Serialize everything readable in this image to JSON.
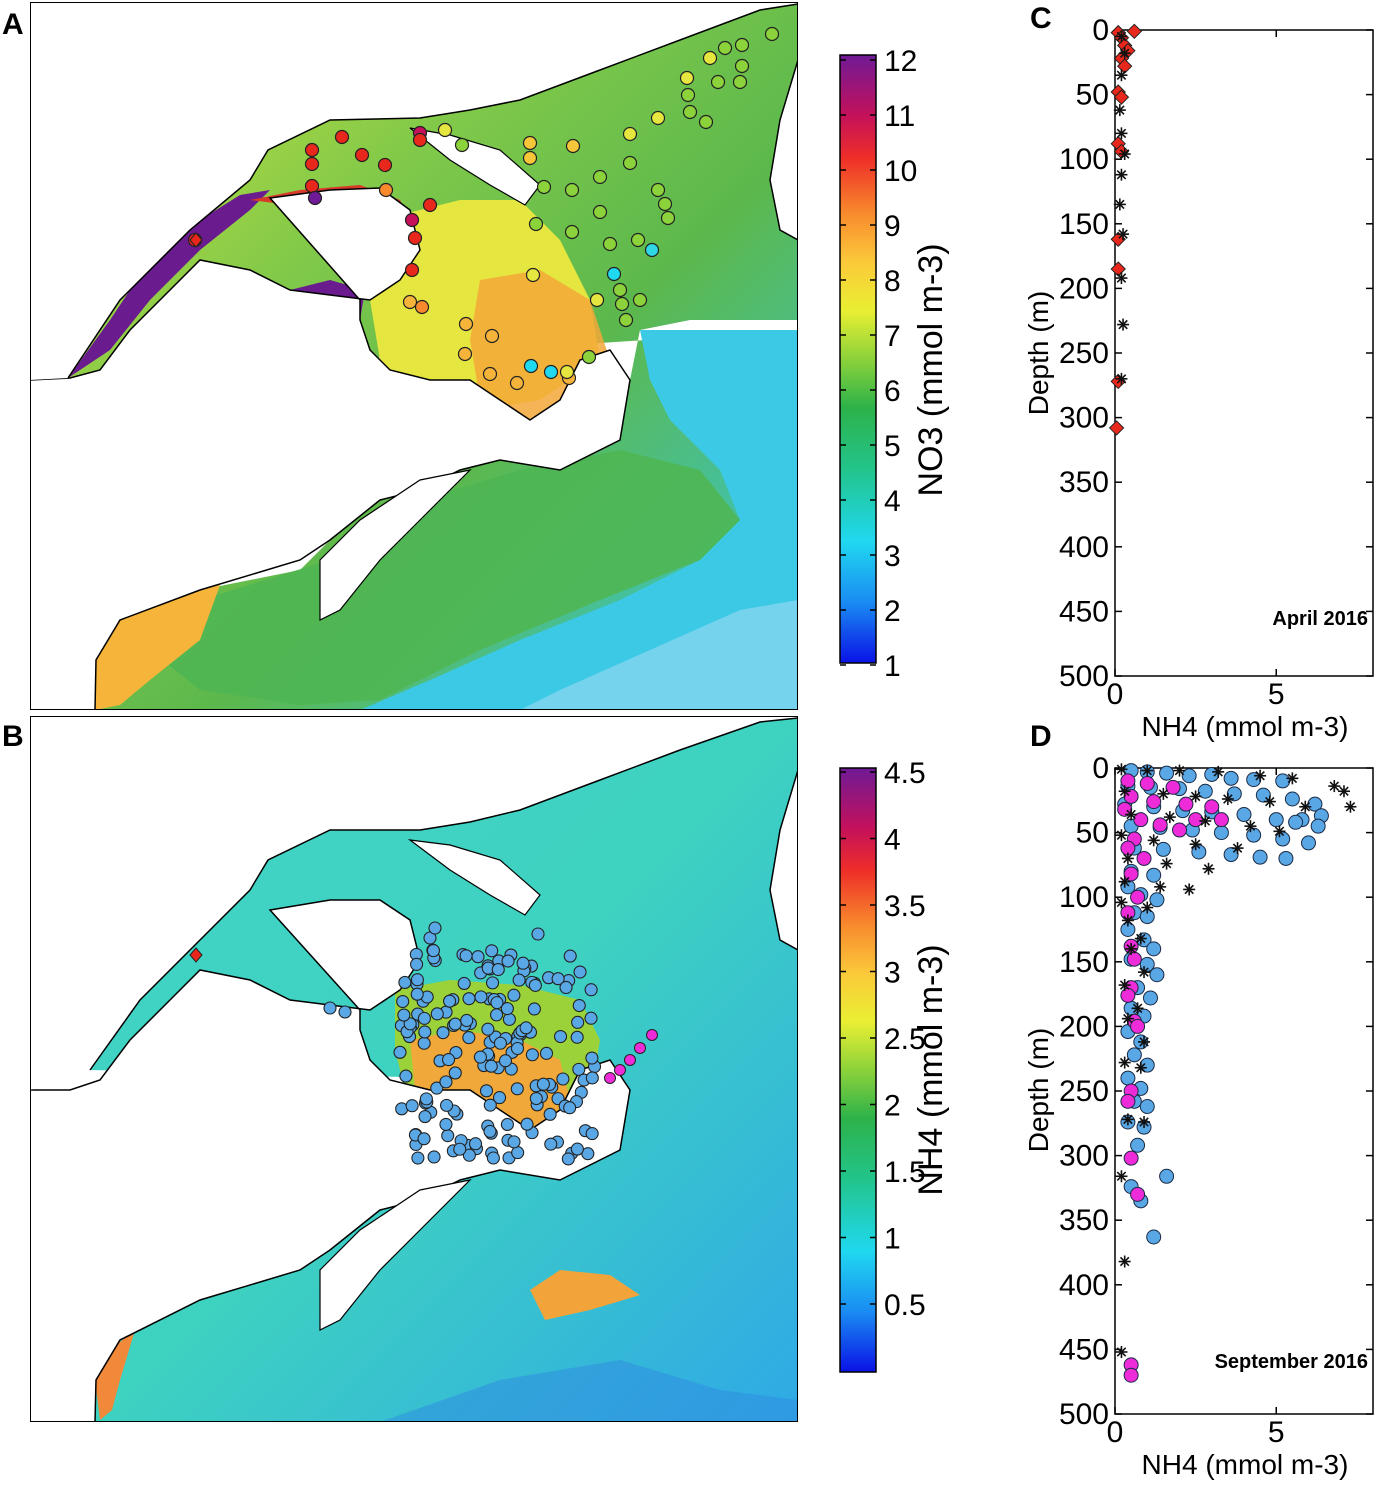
{
  "panels": {
    "a": {
      "label": "A",
      "colorbar_label": "NO3 (mmol m-3)",
      "colorbar_ticks": [
        "12",
        "11",
        "10",
        "9",
        "8",
        "7",
        "6",
        "5",
        "4",
        "3",
        "2",
        "1"
      ]
    },
    "b": {
      "label": "B",
      "colorbar_label": "NH4 (mmol m-3)",
      "colorbar_ticks": [
        "4.5",
        "4",
        "3.5",
        "3",
        "2.5",
        "2",
        "1.5",
        "1",
        "0.5"
      ]
    },
    "c": {
      "label": "C",
      "annotation": "April 2016"
    },
    "d": {
      "label": "D",
      "annotation": "September 2016"
    }
  },
  "colors": {
    "land": "#ffffff",
    "coast": "#000000",
    "marker_red": "#e8281c",
    "marker_blue": "#5aa7e6",
    "marker_magenta": "#ee2bd8",
    "marker_black": "#111111"
  },
  "chart_data": [
    {
      "type": "scatter",
      "panel": "C",
      "xlabel": "NH4 (mmol m-3)",
      "ylabel": "Depth (m)",
      "xlim": [
        0,
        8
      ],
      "ylim": [
        0,
        500
      ],
      "y_reversed": true,
      "x_ticks": [
        "0",
        "5"
      ],
      "y_ticks": [
        "0",
        "50",
        "100",
        "150",
        "200",
        "250",
        "300",
        "350",
        "400",
        "450",
        "500"
      ],
      "annotation": "April 2016",
      "series": [
        {
          "marker": "diamond",
          "color": "#e8281c",
          "points": [
            [
              0.1,
              2
            ],
            [
              0.6,
              1
            ],
            [
              0.2,
              6
            ],
            [
              0.3,
              12
            ],
            [
              0.4,
              16
            ],
            [
              0.2,
              22
            ],
            [
              0.3,
              28
            ],
            [
              0.1,
              48
            ],
            [
              0.2,
              52
            ],
            [
              0.1,
              88
            ],
            [
              0.2,
              94
            ],
            [
              0.1,
              162
            ],
            [
              0.1,
              185
            ],
            [
              0.1,
              272
            ],
            [
              0.05,
              308
            ]
          ]
        },
        {
          "marker": "asterisk",
          "color": "#111111",
          "points": [
            [
              0.2,
              5
            ],
            [
              0.3,
              18
            ],
            [
              0.2,
              35
            ],
            [
              0.15,
              62
            ],
            [
              0.2,
              80
            ],
            [
              0.3,
              96
            ],
            [
              0.2,
              112
            ],
            [
              0.15,
              135
            ],
            [
              0.25,
              158
            ],
            [
              0.2,
              192
            ],
            [
              0.25,
              228
            ],
            [
              0.2,
              270
            ]
          ]
        }
      ]
    },
    {
      "type": "scatter",
      "panel": "D",
      "xlabel": "NH4 (mmol m-3)",
      "ylabel": "Depth (m)",
      "xlim": [
        0,
        8
      ],
      "ylim": [
        0,
        500
      ],
      "y_reversed": true,
      "x_ticks": [
        "0",
        "5"
      ],
      "y_ticks": [
        "0",
        "50",
        "100",
        "150",
        "200",
        "250",
        "300",
        "350",
        "400",
        "450",
        "500"
      ],
      "annotation": "September 2016",
      "series": [
        {
          "marker": "circle",
          "color": "#5aa7e6",
          "points": [
            [
              0.5,
              2
            ],
            [
              1,
              3
            ],
            [
              1.6,
              4
            ],
            [
              2.3,
              6
            ],
            [
              3,
              5
            ],
            [
              3.6,
              8
            ],
            [
              4.3,
              9
            ],
            [
              5.2,
              10
            ],
            [
              0.4,
              14
            ],
            [
              1.1,
              15
            ],
            [
              2,
              16
            ],
            [
              2.8,
              18
            ],
            [
              3.7,
              20
            ],
            [
              4.6,
              21
            ],
            [
              5.5,
              24
            ],
            [
              6.2,
              28
            ],
            [
              5.8,
              40
            ],
            [
              6.4,
              37
            ],
            [
              0.3,
              28
            ],
            [
              1.2,
              30
            ],
            [
              2.1,
              33
            ],
            [
              3,
              34
            ],
            [
              4,
              36
            ],
            [
              5,
              40
            ],
            [
              5.6,
              42
            ],
            [
              6.3,
              45
            ],
            [
              0.5,
              45
            ],
            [
              1.4,
              46
            ],
            [
              2.4,
              48
            ],
            [
              3.3,
              50
            ],
            [
              4.3,
              52
            ],
            [
              5.2,
              55
            ],
            [
              6.0,
              58
            ],
            [
              0.6,
              62
            ],
            [
              1.5,
              63
            ],
            [
              2.6,
              65
            ],
            [
              3.6,
              67
            ],
            [
              4.5,
              69
            ],
            [
              5.3,
              70
            ],
            [
              0.5,
              80
            ],
            [
              1.2,
              83
            ],
            [
              0.4,
              92
            ],
            [
              0.8,
              98
            ],
            [
              1.3,
              102
            ],
            [
              0.6,
              112
            ],
            [
              1.0,
              115
            ],
            [
              0.4,
              125
            ],
            [
              0.9,
              133
            ],
            [
              1.2,
              140
            ],
            [
              0.5,
              148
            ],
            [
              1.0,
              152
            ],
            [
              1.3,
              160
            ],
            [
              0.7,
              170
            ],
            [
              1.1,
              178
            ],
            [
              0.5,
              186
            ],
            [
              0.9,
              192
            ],
            [
              0.4,
              204
            ],
            [
              0.8,
              212
            ],
            [
              0.6,
              222
            ],
            [
              1.0,
              230
            ],
            [
              0.4,
              240
            ],
            [
              0.8,
              248
            ],
            [
              0.6,
              258
            ],
            [
              1.0,
              262
            ],
            [
              0.4,
              274
            ],
            [
              0.9,
              278
            ],
            [
              0.7,
              292
            ],
            [
              1.6,
              316
            ],
            [
              0.5,
              324
            ],
            [
              0.8,
              335
            ],
            [
              1.2,
              363
            ]
          ]
        },
        {
          "marker": "circle",
          "color": "#ee2bd8",
          "points": [
            [
              0.4,
              10
            ],
            [
              1.0,
              12
            ],
            [
              1.8,
              15
            ],
            [
              0.5,
              22
            ],
            [
              1.2,
              26
            ],
            [
              2.2,
              28
            ],
            [
              3.0,
              30
            ],
            [
              0.3,
              32
            ],
            [
              0.8,
              40
            ],
            [
              2.5,
              40
            ],
            [
              3.3,
              40
            ],
            [
              1.4,
              44
            ],
            [
              2.0,
              48
            ],
            [
              0.6,
              55
            ],
            [
              0.4,
              62
            ],
            [
              0.9,
              70
            ],
            [
              0.5,
              82
            ],
            [
              0.7,
              100
            ],
            [
              0.4,
              112
            ],
            [
              0.5,
              138
            ],
            [
              0.6,
              148
            ],
            [
              0.5,
              170
            ],
            [
              0.4,
              176
            ],
            [
              0.6,
              196
            ],
            [
              0.7,
              200
            ],
            [
              0.5,
              250
            ],
            [
              0.4,
              258
            ],
            [
              0.5,
              302
            ],
            [
              0.7,
              330
            ],
            [
              0.5,
              462
            ],
            [
              0.5,
              470
            ]
          ]
        },
        {
          "marker": "asterisk",
          "color": "#111111",
          "points": [
            [
              0.2,
              1
            ],
            [
              1,
              2
            ],
            [
              2,
              2
            ],
            [
              3.2,
              3
            ],
            [
              4.5,
              6
            ],
            [
              5.5,
              8
            ],
            [
              6.8,
              14
            ],
            [
              7.1,
              18
            ],
            [
              0.3,
              18
            ],
            [
              1.5,
              20
            ],
            [
              2.5,
              22
            ],
            [
              3.5,
              24
            ],
            [
              4.8,
              26
            ],
            [
              5.9,
              30
            ],
            [
              7.3,
              30
            ],
            [
              0.5,
              36
            ],
            [
              1.7,
              38
            ],
            [
              2.8,
              41
            ],
            [
              4.2,
              45
            ],
            [
              5.1,
              49
            ],
            [
              0.2,
              52
            ],
            [
              1.2,
              56
            ],
            [
              2.5,
              59
            ],
            [
              3.8,
              62
            ],
            [
              0.4,
              70
            ],
            [
              1.6,
              74
            ],
            [
              2.9,
              78
            ],
            [
              0.3,
              88
            ],
            [
              1.4,
              92
            ],
            [
              2.3,
              94
            ],
            [
              0.2,
              104
            ],
            [
              1.0,
              108
            ],
            [
              0.4,
              118
            ],
            [
              0.8,
              132
            ],
            [
              0.5,
              140
            ],
            [
              0.9,
              158
            ],
            [
              0.3,
              168
            ],
            [
              0.7,
              186
            ],
            [
              0.4,
              194
            ],
            [
              0.9,
              212
            ],
            [
              0.3,
              228
            ],
            [
              0.8,
              232
            ],
            [
              0.4,
              272
            ],
            [
              0.9,
              274
            ],
            [
              0.2,
              316
            ],
            [
              0.3,
              382
            ],
            [
              0.2,
              452
            ]
          ]
        }
      ]
    },
    {
      "type": "heatmap",
      "panel": "A",
      "variable": "NO3",
      "colorbar_label": "NO3 (mmol m-3)",
      "clim": [
        1,
        12
      ],
      "colormap": "jet-like with magenta/purple top",
      "stations_count": 68
    },
    {
      "type": "heatmap",
      "panel": "B",
      "variable": "NH4",
      "colorbar_label": "NH4 (mmol m-3)",
      "clim": [
        0,
        4.5
      ],
      "colormap": "jet-like with magenta/purple top",
      "stations_count": 180
    }
  ]
}
